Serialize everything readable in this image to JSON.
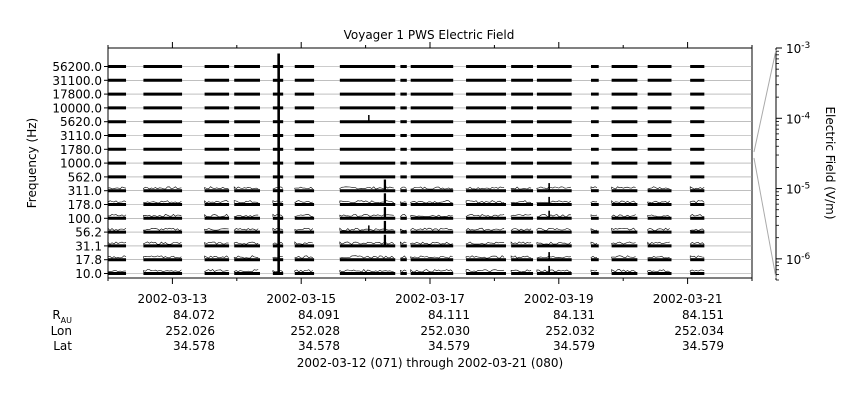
{
  "chart_data": {
    "type": "line",
    "title": "Voyager 1 PWS Electric Field",
    "ylabel": "Frequency (Hz)",
    "channels": [
      "56200.0",
      "31100.0",
      "17800.0",
      "10000.0",
      "5620.0",
      "3110.0",
      "1780.0",
      "1000.0",
      "562.0",
      "311.0",
      "178.0",
      "100.0",
      "56.2",
      "31.1",
      "17.8",
      "10.0"
    ],
    "x_tick_labels": [
      "2002-03-13",
      "2002-03-15",
      "2002-03-17",
      "2002-03-19",
      "2002-03-21"
    ],
    "x_range_days": [
      0,
      10
    ],
    "x_major_tick_days": [
      1,
      3,
      5,
      7,
      9
    ],
    "data_segments_days": [
      [
        0.0,
        0.28
      ],
      [
        0.55,
        1.15
      ],
      [
        1.5,
        1.88
      ],
      [
        1.96,
        2.36
      ],
      [
        2.56,
        2.72
      ],
      [
        2.9,
        3.2
      ],
      [
        3.6,
        4.46
      ],
      [
        4.54,
        4.64
      ],
      [
        4.7,
        5.36
      ],
      [
        5.56,
        6.18
      ],
      [
        6.26,
        6.6
      ],
      [
        6.66,
        7.2
      ],
      [
        7.5,
        7.62
      ],
      [
        7.82,
        8.22
      ],
      [
        8.38,
        8.75
      ],
      [
        9.04,
        9.26
      ]
    ],
    "bursts": [
      {
        "day": 2.65,
        "channels": "all",
        "strength": 1.0
      },
      {
        "day": 4.3,
        "channels": [
          "311.0",
          "178.0",
          "100.0",
          "56.2",
          "31.1"
        ],
        "strength": 0.8
      },
      {
        "day": 4.05,
        "channels": [
          "5620.0",
          "56.2"
        ],
        "strength": 0.3
      },
      {
        "day": 6.85,
        "channels": [
          "311.0",
          "178.0",
          "100.0",
          "17.8",
          "10.0"
        ],
        "strength": 0.4
      }
    ],
    "colorbar": {
      "label": "Electric Field (V/m)",
      "scale": "log",
      "range": [
        5e-07,
        0.001
      ],
      "ticks": [
        {
          "value": 0.001,
          "base": "10",
          "exp": "-3"
        },
        {
          "value": 0.0001,
          "base": "10",
          "exp": "-4"
        },
        {
          "value": 1e-05,
          "base": "10",
          "exp": "-5"
        },
        {
          "value": 1e-06,
          "base": "10",
          "exp": "-6"
        }
      ]
    },
    "ephemeris": {
      "rows": [
        {
          "key": "rau",
          "label_main": "R",
          "label_sub": "AU",
          "values": [
            "84.072",
            "84.091",
            "84.111",
            "84.131",
            "84.151"
          ]
        },
        {
          "key": "lon",
          "label_main": "Lon",
          "label_sub": "",
          "values": [
            "252.026",
            "252.028",
            "252.030",
            "252.032",
            "252.034"
          ]
        },
        {
          "key": "lat",
          "label_main": "Lat",
          "label_sub": "",
          "values": [
            "34.578",
            "34.578",
            "34.579",
            "34.579",
            "34.579"
          ]
        }
      ]
    },
    "date_range_caption": "2002-03-12 (071) through 2002-03-21 (080)"
  }
}
